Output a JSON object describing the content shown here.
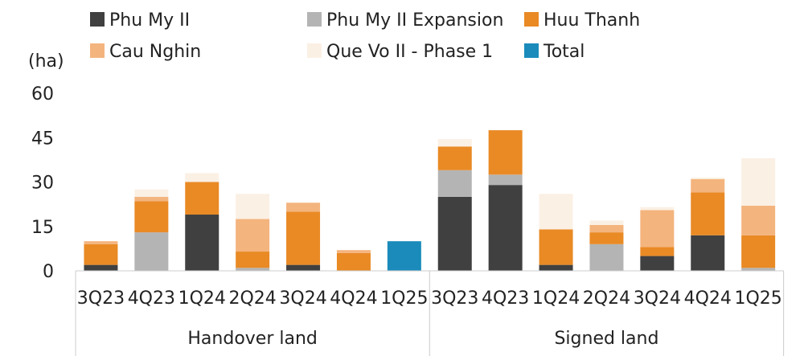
{
  "chart_data": {
    "type": "bar",
    "stacked": true,
    "ylabel": "(ha)",
    "ylim": [
      0,
      60
    ],
    "yticks": [
      0,
      15,
      30,
      45,
      60
    ],
    "grid": false,
    "legend_position": "top",
    "categories": [
      "3Q23",
      "4Q23",
      "1Q24",
      "2Q24",
      "3Q24",
      "4Q24",
      "1Q25",
      "3Q23",
      "4Q23",
      "1Q24",
      "2Q24",
      "3Q24",
      "4Q24",
      "1Q25"
    ],
    "groups": [
      {
        "label": "Handover land",
        "start": 0,
        "end": 6
      },
      {
        "label": "Signed land",
        "start": 7,
        "end": 13
      }
    ],
    "series": [
      {
        "name": "Phu My II",
        "color": "#404040",
        "values": [
          2,
          0,
          19,
          0,
          2,
          0,
          0,
          25,
          29,
          2,
          0,
          5,
          12,
          0
        ]
      },
      {
        "name": "Phu My II Expansion",
        "color": "#b4b4b4",
        "values": [
          0,
          13,
          0,
          1,
          0,
          0,
          0,
          9,
          3.5,
          0,
          9,
          0,
          0,
          1
        ]
      },
      {
        "name": "Huu Thanh",
        "color": "#e98a25",
        "values": [
          7,
          10.5,
          11,
          5.5,
          18,
          6,
          0,
          8,
          15,
          12,
          4,
          3,
          14.5,
          11
        ]
      },
      {
        "name": "Cau Nghin",
        "color": "#f4b47e",
        "values": [
          1,
          1.5,
          0,
          11,
          3,
          1,
          0,
          0,
          0,
          0,
          2.5,
          12.5,
          4.5,
          10
        ]
      },
      {
        "name": "Que Vo II - Phase 1",
        "color": "#fbf0e4",
        "values": [
          0,
          2.5,
          3,
          8.5,
          0,
          0,
          0,
          2.5,
          0,
          12,
          1.5,
          1,
          0.5,
          16
        ]
      },
      {
        "name": "Total",
        "color": "#1a8bbb",
        "values": [
          0,
          0,
          0,
          0,
          0,
          0,
          10,
          0,
          0,
          0,
          0,
          0,
          0,
          0
        ]
      }
    ]
  }
}
